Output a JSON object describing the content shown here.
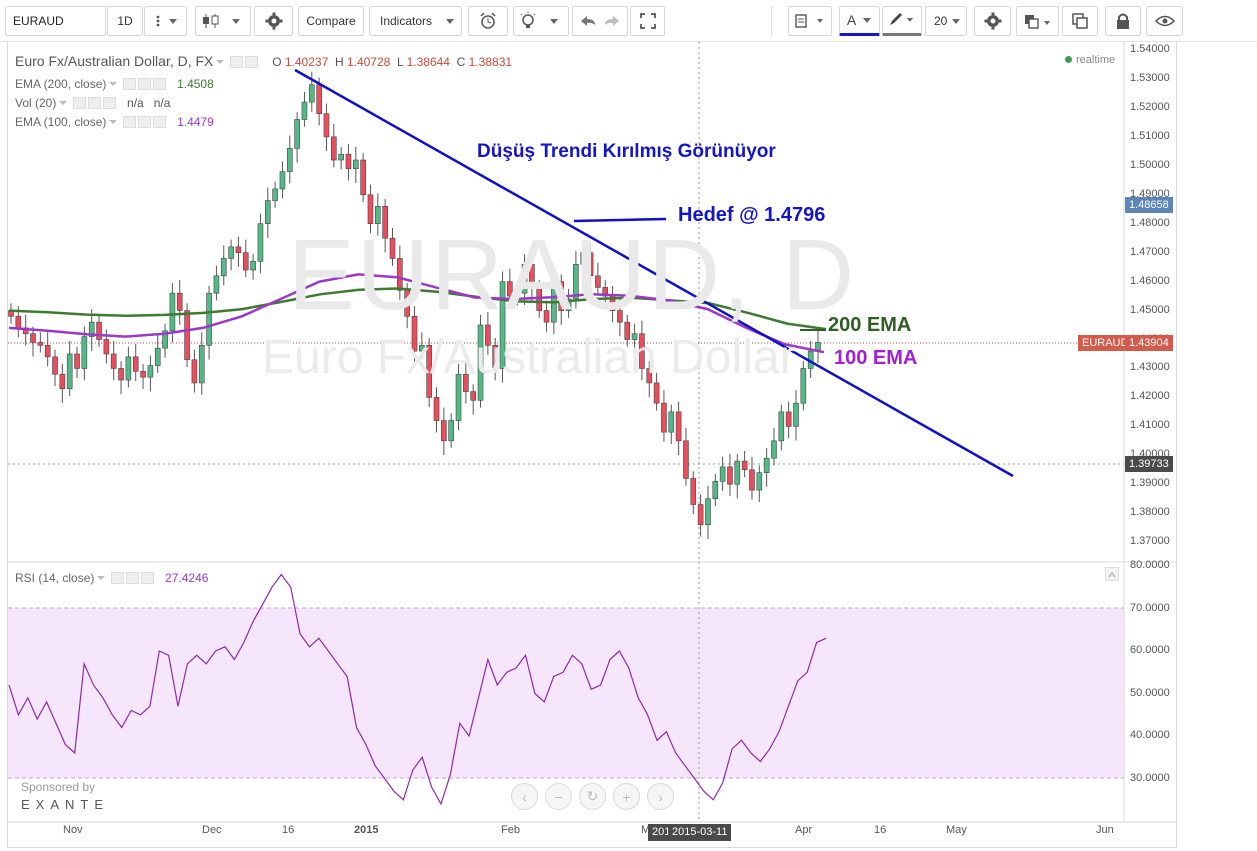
{
  "toolbar": {
    "symbol": "EURAUD",
    "interval": "1D",
    "compare_label": "Compare",
    "indicators_label": "Indicators",
    "font_size": "20",
    "text_tool_label": "A"
  },
  "legend": {
    "title": "Euro Fx/Australian Dollar, D, FX",
    "o_label": "O",
    "o_value": "1.40237",
    "h_label": "H",
    "h_value": "1.40728",
    "l_label": "L",
    "l_value": "1.38644",
    "c_label": "C",
    "c_value": "1.38831",
    "ema200_label": "EMA (200, close)",
    "ema200_value": "1.4508",
    "vol_label": "Vol (20)",
    "vol_value1": "n/a",
    "vol_value2": "n/a",
    "ema100_label": "EMA (100, close)",
    "ema100_value": "1.4479",
    "rsi_label": "RSI (14, close)",
    "rsi_value": "27.4246"
  },
  "realtime_label": "realtime",
  "watermark": {
    "symbol": "EURAUD, D",
    "name": "Euro Fx/Australian Dollar"
  },
  "annotations": {
    "title": "Düşüş Trendi Kırılmış Görünüyor",
    "target": "Hedef @ 1.4796",
    "ema200": "200 EMA",
    "ema100": "100 EMA"
  },
  "price_axis": [
    "1.54000",
    "1.53000",
    "1.52000",
    "1.51000",
    "1.50000",
    "1.49000",
    "1.48000",
    "1.47000",
    "1.46000",
    "1.45000",
    "1.44000",
    "1.43000",
    "1.42000",
    "1.41000",
    "1.40000",
    "1.39000",
    "1.38000",
    "1.37000"
  ],
  "price_tags": {
    "target": "1.48658",
    "current_label": "EURAUD",
    "current": "1.43904",
    "crosshair": "1.39733"
  },
  "rsi_axis": [
    "80.0000",
    "70.0000",
    "60.0000",
    "50.0000",
    "40.0000",
    "30.0000"
  ],
  "time_axis": [
    "Nov",
    "Dec",
    "16",
    "2015",
    "Feb",
    "M",
    "Apr",
    "16",
    "May",
    "Jun"
  ],
  "time_tags": {
    "crosshair_date": "2015-03-11",
    "partial": "201"
  },
  "sponsored": {
    "label": "Sponsored by",
    "brand": "EXANTE"
  },
  "colors": {
    "up_candle": "#53b987",
    "down_candle": "#eb4d5c",
    "ema200": "#3e7a32",
    "ema100": "#9b38c7",
    "trendline": "#1010c8",
    "rsi_line": "#8e2aa8",
    "rsi_band": "#f5e6fb"
  },
  "chart_data": {
    "type": "candlestick",
    "ema200": [
      1.45,
      1.4494,
      1.4486,
      1.4482,
      1.4485,
      1.4492,
      1.4505,
      1.453,
      1.4556,
      1.4572,
      1.4576,
      1.4565,
      1.4548,
      1.4532,
      1.4528,
      1.454,
      1.4544,
      1.4535,
      1.4525,
      1.4492,
      1.4455,
      1.4436
    ],
    "ema100": [
      1.444,
      1.443,
      1.4418,
      1.441,
      1.442,
      1.444,
      1.448,
      1.454,
      1.46,
      1.4625,
      1.4615,
      1.458,
      1.4545,
      1.454,
      1.4546,
      1.4556,
      1.4551,
      1.4535,
      1.4505,
      1.444,
      1.4383,
      1.4356
    ],
    "rsi": [
      52,
      45,
      49,
      44,
      48,
      43,
      38,
      36,
      57,
      52,
      49,
      45,
      42,
      46,
      45,
      47,
      60,
      59,
      47,
      57,
      59,
      57,
      60,
      61,
      58,
      62,
      67,
      71,
      75,
      78,
      75,
      64,
      61,
      63,
      60,
      57,
      54,
      42,
      38,
      33,
      30,
      27,
      25,
      32,
      35,
      28,
      24,
      31,
      43,
      40,
      49,
      58,
      52,
      55,
      56,
      59,
      50,
      48,
      54,
      55,
      59,
      57,
      51,
      52,
      58,
      60,
      56,
      49,
      45,
      39,
      41,
      36,
      33,
      30,
      27,
      25,
      29,
      37,
      39,
      36,
      34,
      37,
      41,
      47,
      53,
      55,
      62,
      63
    ]
  }
}
